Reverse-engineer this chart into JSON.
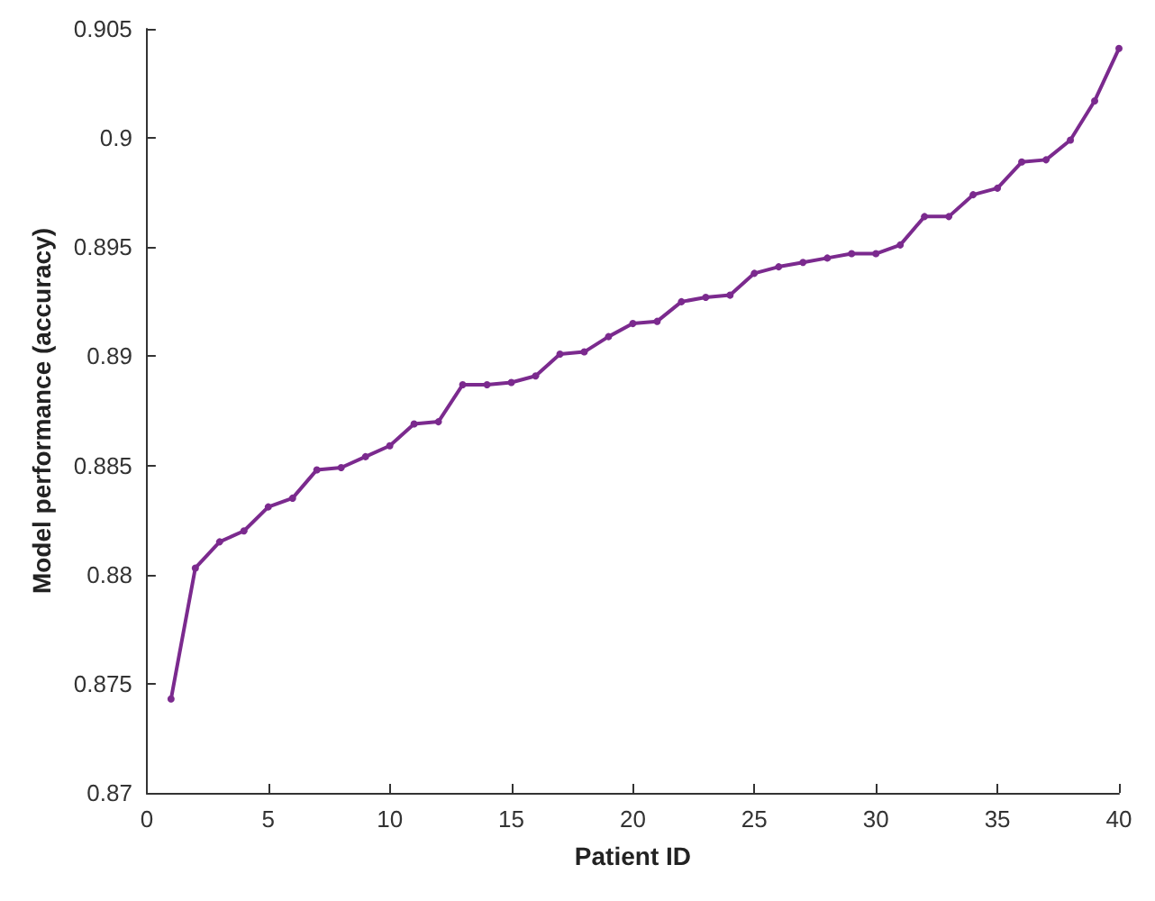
{
  "chart_data": {
    "type": "line",
    "xlabel": "Patient ID",
    "ylabel": "Model performance (accuracy)",
    "x": [
      1,
      2,
      3,
      4,
      5,
      6,
      7,
      8,
      9,
      10,
      11,
      12,
      13,
      14,
      15,
      16,
      17,
      18,
      19,
      20,
      21,
      22,
      23,
      24,
      25,
      26,
      27,
      28,
      29,
      30,
      31,
      32,
      33,
      34,
      35,
      36,
      37,
      38,
      39,
      40
    ],
    "series": [
      {
        "color": "#7b2a8e",
        "values": [
          0.8743,
          0.8803,
          0.8815,
          0.882,
          0.8831,
          0.8835,
          0.8848,
          0.8849,
          0.8854,
          0.8859,
          0.8869,
          0.887,
          0.8887,
          0.8887,
          0.8888,
          0.8891,
          0.8901,
          0.8902,
          0.8909,
          0.8915,
          0.8916,
          0.8925,
          0.8927,
          0.8928,
          0.8938,
          0.8941,
          0.8943,
          0.8945,
          0.8947,
          0.8947,
          0.8951,
          0.8964,
          0.8964,
          0.8974,
          0.8977,
          0.8989,
          0.899,
          0.8999,
          0.9017,
          0.9041
        ]
      }
    ],
    "xlim": [
      0,
      40
    ],
    "xticks": [
      0,
      5,
      10,
      15,
      20,
      25,
      30,
      35,
      40
    ],
    "ylim": [
      0.87,
      0.905
    ],
    "yticks": [
      0.87,
      0.875,
      0.88,
      0.885,
      0.89,
      0.895,
      0.9,
      0.905
    ],
    "grid": false,
    "marker": "circle",
    "line_style": "solid"
  }
}
